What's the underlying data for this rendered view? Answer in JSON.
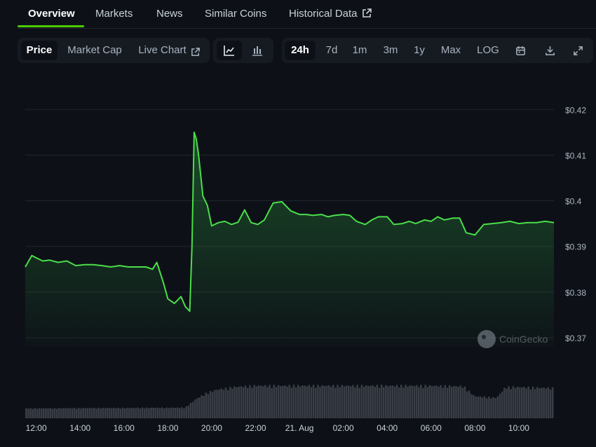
{
  "tabs": {
    "overview": "Overview",
    "markets": "Markets",
    "news": "News",
    "similar": "Similar Coins",
    "historical": "Historical Data"
  },
  "toolbar": {
    "price": "Price",
    "market_cap": "Market Cap",
    "live_chart": "Live Chart",
    "ranges": [
      "24h",
      "7d",
      "1m",
      "3m",
      "1y",
      "Max",
      "LOG"
    ],
    "active_range": "24h"
  },
  "watermark": "CoinGecko",
  "colors": {
    "background": "#0d1117",
    "line": "#4ade4a",
    "volume": "#3a3f47",
    "accent": "#4bcc00"
  },
  "chart_data": {
    "type": "area",
    "y_ticks": [
      "$0.42",
      "$0.41",
      "$0.4",
      "$0.39",
      "$0.38",
      "$0.37"
    ],
    "y_tick_values": [
      0.42,
      0.41,
      0.4,
      0.39,
      0.38,
      0.37
    ],
    "ylim": [
      0.368,
      0.4225
    ],
    "x_ticks": [
      "12:00",
      "14:00",
      "16:00",
      "18:00",
      "20:00",
      "22:00",
      "21. Aug",
      "02:00",
      "04:00",
      "06:00",
      "08:00",
      "10:00"
    ],
    "x_tick_hours": [
      12,
      14,
      16,
      18,
      20,
      22,
      24,
      26,
      28,
      30,
      32,
      34
    ],
    "xlim": [
      11.5,
      35.6
    ],
    "x_hours": [
      11.5,
      11.8,
      12.0,
      12.3,
      12.6,
      13.0,
      13.4,
      13.8,
      14.2,
      14.6,
      15.0,
      15.4,
      15.8,
      16.2,
      16.6,
      17.0,
      17.3,
      17.5,
      17.8,
      18.0,
      18.3,
      18.6,
      18.8,
      19.0,
      19.1,
      19.2,
      19.3,
      19.4,
      19.6,
      19.8,
      20.0,
      20.3,
      20.6,
      20.9,
      21.2,
      21.5,
      21.8,
      22.1,
      22.4,
      22.8,
      23.2,
      23.6,
      24.0,
      24.3,
      24.6,
      25.0,
      25.3,
      25.6,
      26.0,
      26.3,
      26.6,
      27.0,
      27.3,
      27.6,
      28.0,
      28.3,
      28.7,
      29.0,
      29.3,
      29.7,
      30.0,
      30.3,
      30.6,
      31.0,
      31.3,
      31.6,
      32.0,
      32.4,
      32.8,
      33.2,
      33.6,
      34.0,
      34.4,
      34.8,
      35.2,
      35.6
    ],
    "price": [
      0.3855,
      0.388,
      0.3875,
      0.3868,
      0.387,
      0.3865,
      0.3868,
      0.3858,
      0.386,
      0.386,
      0.3858,
      0.3855,
      0.3858,
      0.3855,
      0.3855,
      0.3855,
      0.385,
      0.3865,
      0.382,
      0.3785,
      0.3775,
      0.379,
      0.3768,
      0.3758,
      0.39,
      0.415,
      0.4135,
      0.41,
      0.401,
      0.399,
      0.3945,
      0.3952,
      0.3955,
      0.3948,
      0.3953,
      0.398,
      0.3952,
      0.3948,
      0.3958,
      0.3995,
      0.3998,
      0.3978,
      0.397,
      0.397,
      0.3968,
      0.397,
      0.3965,
      0.3968,
      0.397,
      0.3968,
      0.3955,
      0.3948,
      0.3958,
      0.3965,
      0.3965,
      0.3948,
      0.395,
      0.3955,
      0.395,
      0.3958,
      0.3955,
      0.3965,
      0.3958,
      0.3962,
      0.3962,
      0.393,
      0.3925,
      0.3948,
      0.395,
      0.3952,
      0.3955,
      0.395,
      0.3952,
      0.3952,
      0.3955,
      0.3952
    ],
    "volume_hours": [
      11.5,
      18.8,
      19.3,
      19.8,
      20.2,
      20.6,
      21.0,
      21.5,
      22.0,
      24.0,
      26.0,
      28.0,
      30.0,
      31.5,
      32.0,
      33.0,
      33.4,
      34.0,
      35.6
    ],
    "volume_rel": [
      0.28,
      0.3,
      0.55,
      0.72,
      0.8,
      0.84,
      0.88,
      0.9,
      0.92,
      0.92,
      0.92,
      0.92,
      0.92,
      0.9,
      0.62,
      0.58,
      0.88,
      0.88,
      0.85
    ]
  }
}
